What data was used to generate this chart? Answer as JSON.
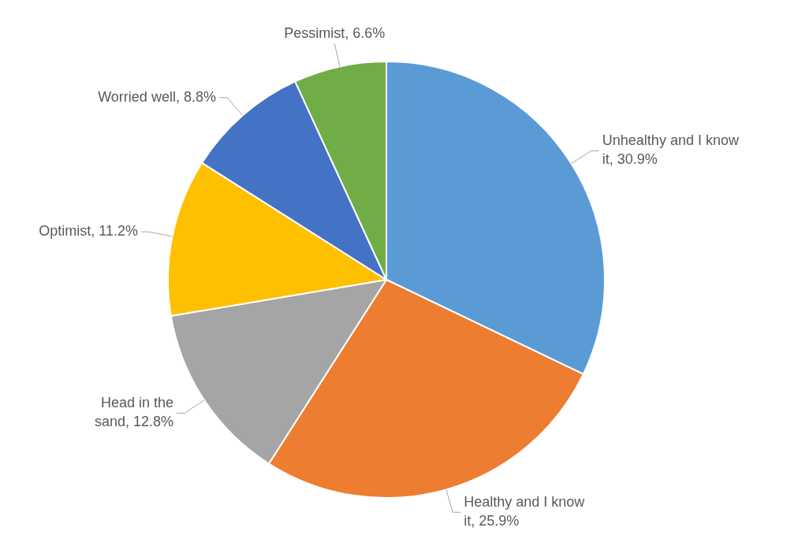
{
  "chart_data": {
    "type": "pie",
    "categories": [
      "Unhealthy and I know it",
      "Healthy and I know it",
      "Head in the sand",
      "Optimist",
      "Worried well",
      "Pessimist"
    ],
    "values": [
      30.9,
      25.9,
      12.8,
      11.2,
      8.8,
      6.6
    ],
    "value_labels": [
      "30.9%",
      "25.9%",
      "12.8%",
      "11.2%",
      "8.8%",
      "6.6%"
    ],
    "colors": [
      "#5b9bd5",
      "#ed7d31",
      "#a5a5a5",
      "#ffc000",
      "#4472c4",
      "#70ad47"
    ],
    "legend": false
  }
}
